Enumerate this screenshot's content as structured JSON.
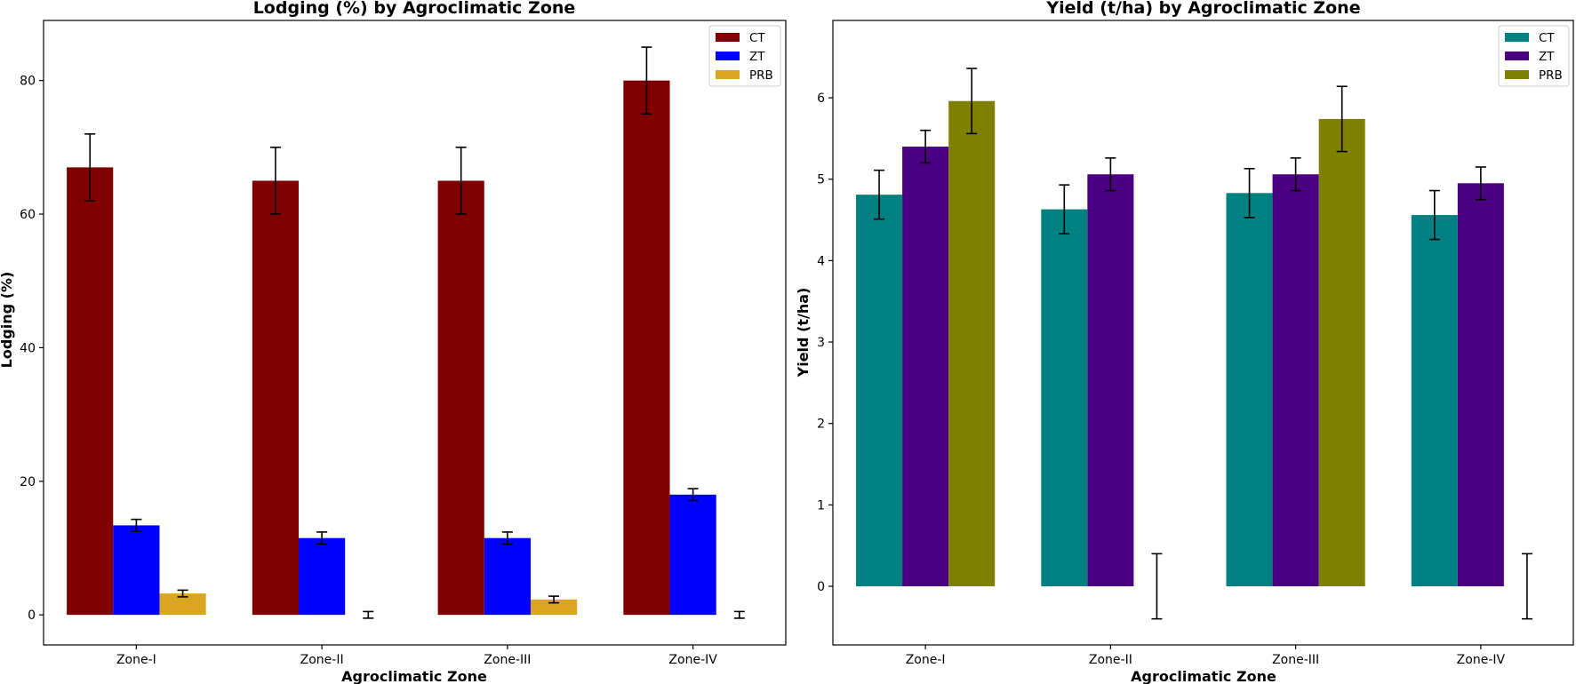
{
  "chart_data": [
    {
      "type": "bar",
      "title": "Lodging (%) by Agroclimatic Zone",
      "xlabel": "Agroclimatic Zone",
      "ylabel": "Lodging (%)",
      "ylim": [
        -4.5,
        89
      ],
      "yticks": [
        0,
        20,
        40,
        60,
        80
      ],
      "grid": false,
      "legend_position": "top-right",
      "categories": [
        "Zone-I",
        "Zone-II",
        "Zone-III",
        "Zone-IV"
      ],
      "series": [
        {
          "name": "CT",
          "color": "#800000",
          "values": [
            67,
            65,
            65,
            80
          ],
          "errors": [
            5,
            5,
            5,
            5
          ]
        },
        {
          "name": "ZT",
          "color": "#0000ff",
          "values": [
            13.4,
            11.5,
            11.5,
            18
          ],
          "errors": [
            0.9,
            0.9,
            0.9,
            0.9
          ]
        },
        {
          "name": "PRB",
          "color": "#daa520",
          "values": [
            3.2,
            0,
            2.3,
            0
          ],
          "errors": [
            0.5,
            0.5,
            0.5,
            0.5
          ]
        }
      ]
    },
    {
      "type": "bar",
      "title": "Yield (t/ha) by Agroclimatic Zone",
      "xlabel": "Agroclimatic Zone",
      "ylabel": "Yield (t/ha)",
      "ylim": [
        -0.72,
        6.95
      ],
      "yticks": [
        0,
        1,
        2,
        3,
        4,
        5,
        6
      ],
      "grid": false,
      "legend_position": "top-right",
      "categories": [
        "Zone-I",
        "Zone-II",
        "Zone-III",
        "Zone-IV"
      ],
      "series": [
        {
          "name": "CT",
          "color": "#008080",
          "values": [
            4.81,
            4.63,
            4.83,
            4.56
          ],
          "errors": [
            0.3,
            0.3,
            0.3,
            0.3
          ]
        },
        {
          "name": "ZT",
          "color": "#4b0082",
          "values": [
            5.4,
            5.06,
            5.06,
            4.95
          ],
          "errors": [
            0.2,
            0.2,
            0.2,
            0.2
          ]
        },
        {
          "name": "PRB",
          "color": "#808000",
          "values": [
            5.96,
            0,
            5.74,
            0
          ],
          "errors": [
            0.4,
            0.4,
            0.4,
            0.4
          ]
        }
      ]
    }
  ]
}
